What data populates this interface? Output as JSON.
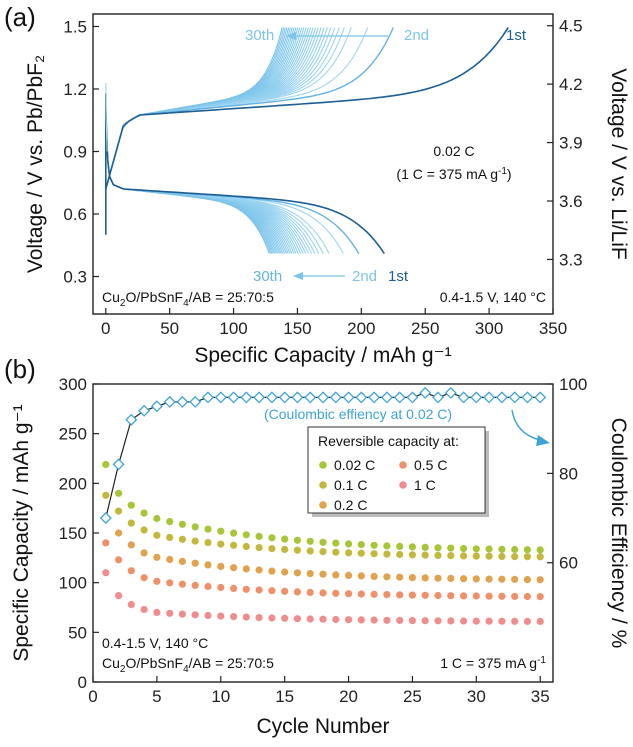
{
  "chart_data": [
    {
      "panel": "(a)",
      "type": "line",
      "xlabel": "Specific Capacity / mAh g⁻¹",
      "ylabel": "Voltage / V vs. Pb/PbF₂",
      "ylabel_right": "Voltage / V vs. Li/LiF",
      "xlim": [
        -10,
        350
      ],
      "ylim": [
        0.12,
        1.56
      ],
      "ylim_right": [
        3.02,
        4.56
      ],
      "xticks": [
        0,
        50,
        100,
        150,
        200,
        250,
        300,
        350
      ],
      "yticks": [
        0.3,
        0.6,
        0.9,
        1.2,
        1.5
      ],
      "yticks_right": [
        3.3,
        3.6,
        3.9,
        4.2,
        4.5
      ],
      "annotations": {
        "rate": "0.02 C",
        "rate_def_pre": "(1 C = 375 mA g",
        "rate_def_sup": "-1",
        "rate_def_post": ")",
        "composition_a": "Cu",
        "composition_sub1": "2",
        "composition_b": "O/PbSnF",
        "composition_sub2": "4",
        "composition_c": "/AB = 25:70:5",
        "conditions": "0.4-1.5 V, 140 °C"
      },
      "cycle_labels": {
        "charge_30th": "30th",
        "charge_2nd": "2nd",
        "charge_1st": "1st",
        "discharge_30th": "30th",
        "discharge_2nd": "2nd",
        "discharge_1st": "1st"
      },
      "series": [
        {
          "name": "1st",
          "charge_capacity": 315,
          "discharge_capacity": 218
        },
        {
          "name": "2nd",
          "charge_capacity": 225,
          "discharge_capacity": 198
        },
        {
          "name": "3rd-30th",
          "charge_capacity_range": [
            138,
            205
          ],
          "discharge_capacity_range": [
            128,
            186
          ]
        }
      ]
    },
    {
      "panel": "(b)",
      "type": "scatter",
      "xlabel": "Cycle Number",
      "ylabel": "Specific Capacity / mAh g⁻¹",
      "ylabel_right": "Coulombic Efficiency / %",
      "xlim": [
        0,
        36
      ],
      "ylim": [
        0,
        300
      ],
      "ylim_right": [
        33.3,
        100
      ],
      "xticks": [
        0,
        5,
        10,
        15,
        20,
        25,
        30,
        35
      ],
      "yticks": [
        0,
        50,
        100,
        150,
        200,
        250,
        300
      ],
      "yticks_right": [
        60,
        80,
        100
      ],
      "legend_title": "Reversible capacity at:",
      "ce_label": "(Coulombic effiency at 0.02 C)",
      "annotations": {
        "conditions": "0.4-1.5 V, 140 °C",
        "composition_a": "Cu",
        "composition_sub1": "2",
        "composition_b": "O/PbSnF",
        "composition_sub2": "4",
        "composition_c": "/AB = 25:70:5",
        "rate_def_pre": "1 C = 375 mA g",
        "rate_def_sup": "-1"
      },
      "series": [
        {
          "name": "0.02 C",
          "color": "#a6c637",
          "first": [
            219,
            190,
            178,
            170
          ],
          "start": 168,
          "end": 133
        },
        {
          "name": "0.1 C",
          "color": "#c2b83c",
          "first": [
            188,
            172,
            160,
            153
          ],
          "start": 150,
          "end": 126
        },
        {
          "name": "0.2 C",
          "color": "#e0a24e",
          "first": [
            166,
            150,
            138,
            130
          ],
          "start": 128,
          "end": 103
        },
        {
          "name": "0.5 C",
          "color": "#f0906a",
          "first": [
            140,
            123,
            112,
            105
          ],
          "start": 103,
          "end": 86
        },
        {
          "name": "1 C",
          "color": "#ef8d8e",
          "first": [
            110,
            87,
            78,
            73
          ],
          "start": 71,
          "end": 61
        }
      ],
      "coulombic_efficiency": {
        "name": "CE 0.02 C",
        "color": "#3ea4d6",
        "values": [
          70,
          82,
          92,
          94,
          95,
          96,
          96,
          96,
          97,
          97,
          97,
          97,
          97,
          97,
          97,
          97,
          97,
          97,
          97,
          97,
          97,
          97,
          97,
          97,
          97,
          98,
          97,
          98,
          97,
          97,
          97,
          97,
          97,
          97,
          97
        ]
      }
    }
  ]
}
